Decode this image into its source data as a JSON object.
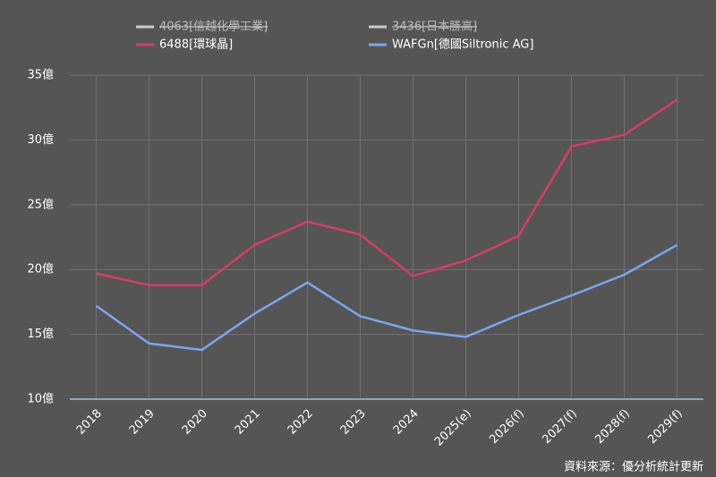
{
  "chart_data": {
    "type": "line",
    "categories": [
      "2018",
      "2019",
      "2020",
      "2021",
      "2022",
      "2023",
      "2024",
      "2025(e)",
      "2026(f)",
      "2027(f)",
      "2028(f)",
      "2029(f)"
    ],
    "series": [
      {
        "name": "4063[信越化學工業]",
        "color": "#cccccc",
        "hidden": true,
        "values": [
          null,
          null,
          null,
          null,
          null,
          null,
          null,
          null,
          null,
          null,
          null,
          null
        ]
      },
      {
        "name": "3436[日本勝高]",
        "color": "#cccccc",
        "hidden": true,
        "values": [
          null,
          null,
          null,
          null,
          null,
          null,
          null,
          null,
          null,
          null,
          null,
          null
        ]
      },
      {
        "name": "6488[環球晶]",
        "color": "#d93a6a",
        "values": [
          19.7,
          18.8,
          18.8,
          21.9,
          23.7,
          22.7,
          19.5,
          20.7,
          22.6,
          29.5,
          30.4,
          33.1
        ]
      },
      {
        "name": "WAFGn[德國Siltronic AG]",
        "color": "#7aa6ee",
        "values": [
          17.2,
          14.3,
          13.8,
          16.6,
          19.0,
          16.4,
          15.3,
          14.8,
          16.5,
          18.0,
          19.6,
          21.9
        ]
      }
    ],
    "ylim": [
      10,
      35
    ],
    "yticks": [
      {
        "value": 10,
        "label": "10億"
      },
      {
        "value": 15,
        "label": "15億"
      },
      {
        "value": 20,
        "label": "20億"
      },
      {
        "value": 25,
        "label": "25億"
      },
      {
        "value": 30,
        "label": "30億"
      },
      {
        "value": 35,
        "label": "35億"
      }
    ],
    "grid": true,
    "source": "資料來源：優分析統計更新"
  }
}
